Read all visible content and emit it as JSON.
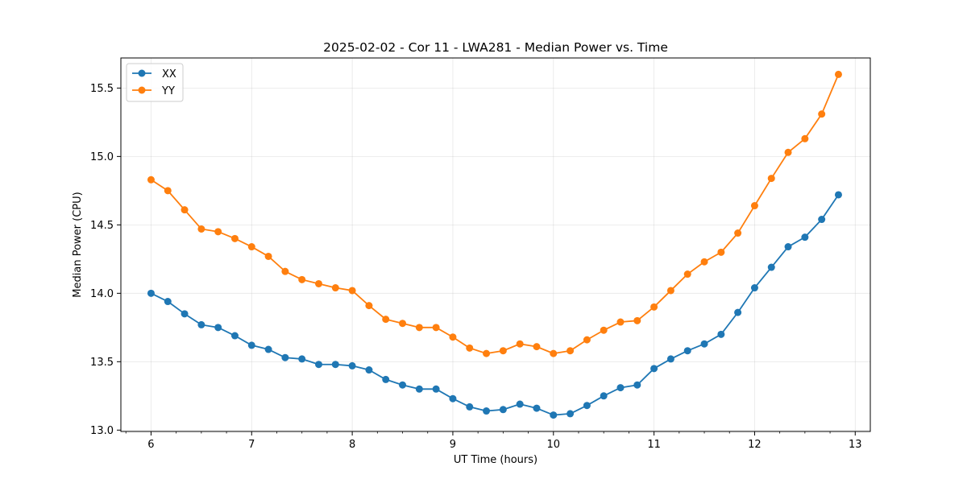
{
  "chart_data": {
    "type": "line",
    "title": "2025-02-02 - Cor 11 - LWA281 - Median Power vs. Time",
    "xlabel": "UT Time (hours)",
    "ylabel": "Median Power (CPU)",
    "xlim": [
      5.7,
      13.15
    ],
    "ylim": [
      12.99,
      15.72
    ],
    "xticks": [
      6,
      7,
      8,
      9,
      10,
      11,
      12,
      13
    ],
    "xtick_labels": [
      "6",
      "7",
      "8",
      "9",
      "10",
      "11",
      "12",
      "13"
    ],
    "yticks": [
      13.0,
      13.5,
      14.0,
      14.5,
      15.0,
      15.5
    ],
    "ytick_labels": [
      "13.0",
      "13.5",
      "14.0",
      "14.5",
      "15.0",
      "15.5"
    ],
    "grid": true,
    "legend_position": "top-left",
    "x": [
      6.0,
      6.1667,
      6.3333,
      6.5,
      6.6667,
      6.8333,
      7.0,
      7.1667,
      7.3333,
      7.5,
      7.6667,
      7.8333,
      8.0,
      8.1667,
      8.3333,
      8.5,
      8.6667,
      8.8333,
      9.0,
      9.1667,
      9.3333,
      9.5,
      9.6667,
      9.8333,
      10.0,
      10.1667,
      10.3333,
      10.5,
      10.6667,
      10.8333,
      11.0,
      11.1667,
      11.3333,
      11.5,
      11.6667,
      11.8333,
      12.0,
      12.1667,
      12.3333,
      12.5,
      12.6667,
      12.8333
    ],
    "series": [
      {
        "name": "XX",
        "color": "#1f77b4",
        "values": [
          14.0,
          13.94,
          13.85,
          13.77,
          13.75,
          13.69,
          13.62,
          13.59,
          13.53,
          13.52,
          13.48,
          13.48,
          13.47,
          13.44,
          13.37,
          13.33,
          13.3,
          13.3,
          13.23,
          13.17,
          13.14,
          13.15,
          13.19,
          13.16,
          13.11,
          13.12,
          13.18,
          13.25,
          13.31,
          13.33,
          13.45,
          13.52,
          13.58,
          13.63,
          13.7,
          13.86,
          14.04,
          14.19,
          14.34,
          14.41,
          14.54,
          14.72
        ]
      },
      {
        "name": "YY",
        "color": "#ff7f0e",
        "values": [
          14.83,
          14.75,
          14.61,
          14.47,
          14.45,
          14.4,
          14.34,
          14.27,
          14.16,
          14.1,
          14.07,
          14.04,
          14.02,
          13.91,
          13.81,
          13.78,
          13.75,
          13.75,
          13.68,
          13.6,
          13.56,
          13.58,
          13.63,
          13.61,
          13.56,
          13.58,
          13.66,
          13.73,
          13.79,
          13.8,
          13.9,
          14.02,
          14.14,
          14.23,
          14.3,
          14.44,
          14.64,
          14.84,
          15.03,
          15.13,
          15.31,
          15.6
        ]
      }
    ]
  }
}
